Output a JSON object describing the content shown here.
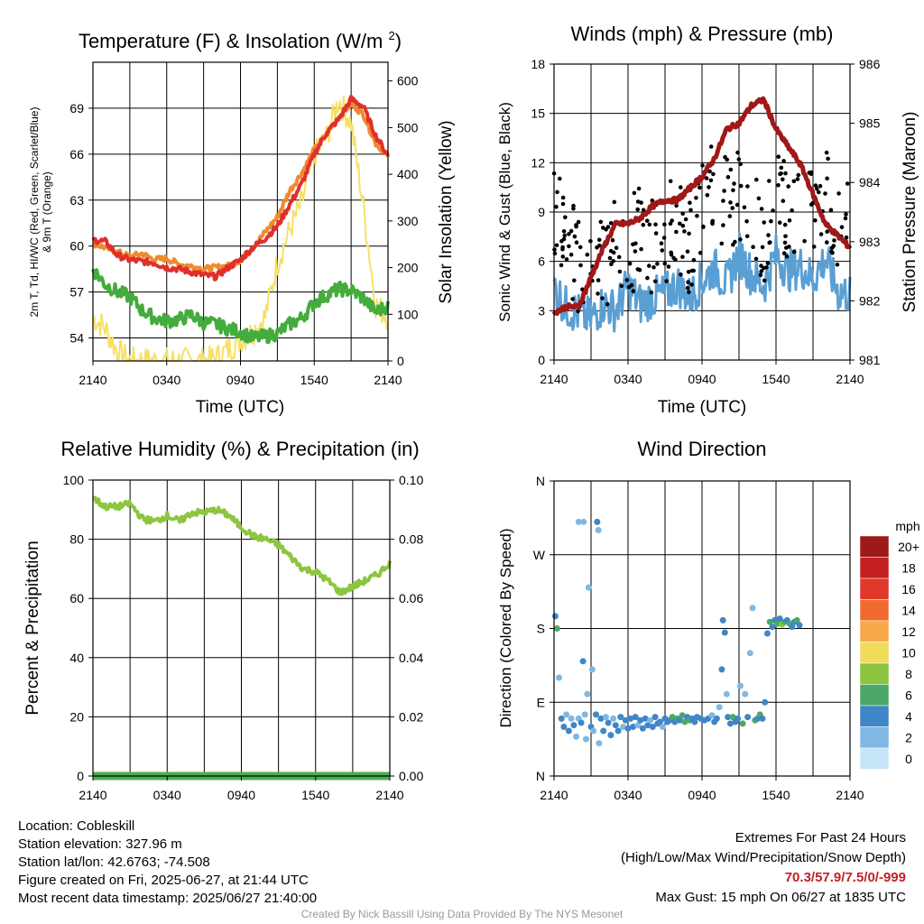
{
  "chart_data": [
    {
      "type": "line",
      "title": "Temperature (F) & Insolation (W/m²)",
      "xlabel": "Time (UTC)",
      "ylabel": "2m T, Td, HI/WC (Red, Green, Scarlet/Blue) & 9m T (Orange)",
      "ylabel_line1": "2m T, Td, HI/WC (Red, Green, Scarlet/Blue)",
      "ylabel_line2": "& 9m T (Orange)",
      "ylabel_right": "Solar Insolation (Yellow)",
      "x_ticks": [
        "2140",
        "0340",
        "0940",
        "1540",
        "2140"
      ],
      "ylim": [
        52.5,
        72
      ],
      "y_ticks": [
        54,
        57,
        60,
        63,
        66,
        69
      ],
      "ylim_right": [
        0,
        640
      ],
      "y_ticks_right": [
        0,
        100,
        200,
        300,
        400,
        500,
        600
      ],
      "x_hours": [
        0,
        1,
        2,
        3,
        4,
        5,
        6,
        7,
        8,
        9,
        10,
        11,
        12,
        13,
        14,
        15,
        16,
        17,
        18,
        19,
        20,
        21,
        22,
        23,
        24
      ],
      "series": [
        {
          "color": "#e0302a",
          "values": [
            60.4,
            60.3,
            59.4,
            59.1,
            59.0,
            58.9,
            58.6,
            58.5,
            58.3,
            58.1,
            58.0,
            58.6,
            59.1,
            59.9,
            60.5,
            61.3,
            62.7,
            64.1,
            66.0,
            67.4,
            68.3,
            69.6,
            69.1,
            67.2,
            65.9
          ]
        },
        {
          "color": "#f08a30",
          "values": [
            60.2,
            59.9,
            59.6,
            59.3,
            59.5,
            59.1,
            59.2,
            58.8,
            58.7,
            58.5,
            58.6,
            58.7,
            59.1,
            59.9,
            60.9,
            61.9,
            63.6,
            64.8,
            66.3,
            67.3,
            68.4,
            69.3,
            68.6,
            66.7,
            65.9
          ]
        },
        {
          "color": "#44ac3c",
          "values": [
            58.5,
            57.5,
            57.0,
            56.7,
            55.8,
            55.3,
            55.1,
            55.2,
            55.5,
            55.0,
            54.9,
            54.6,
            54.4,
            54.0,
            54.1,
            54.3,
            54.9,
            55.3,
            56.3,
            56.8,
            57.2,
            57.1,
            56.6,
            55.7,
            56.1
          ]
        },
        {
          "color": "#f7e065",
          "axis": "right",
          "values": [
            95,
            70,
            20,
            0,
            0,
            0,
            0,
            0,
            0,
            0,
            5,
            25,
            45,
            62,
            95,
            210,
            280,
            340,
            440,
            480,
            560,
            510,
            330,
            120,
            95
          ]
        }
      ]
    },
    {
      "type": "line",
      "title": "Winds (mph) & Pressure (mb)",
      "xlabel": "Time (UTC)",
      "ylabel": "Sonic Wind & Gust (Blue, Black)",
      "ylabel_right": "Station Pressure (Maroon)",
      "x_ticks": [
        "2140",
        "0340",
        "0940",
        "1540",
        "2140"
      ],
      "ylim": [
        0,
        18
      ],
      "y_ticks": [
        0,
        3,
        6,
        9,
        12,
        15,
        18
      ],
      "ylim_right": [
        981,
        986
      ],
      "y_ticks_right": [
        981,
        982,
        983,
        984,
        985,
        986
      ],
      "x_hours": [
        0,
        1,
        2,
        3,
        4,
        5,
        6,
        7,
        8,
        9,
        10,
        11,
        12,
        13,
        14,
        15,
        16,
        17,
        18,
        19,
        20,
        21,
        22,
        23,
        24
      ],
      "series": [
        {
          "color": "#a01818",
          "axis": "right",
          "values": [
            981.8,
            981.9,
            981.9,
            982.4,
            982.9,
            983.3,
            983.3,
            983.4,
            983.6,
            983.7,
            983.7,
            983.9,
            984.1,
            984.4,
            984.9,
            985.0,
            985.3,
            985.4,
            984.9,
            984.6,
            984.3,
            983.8,
            983.3,
            983.1,
            982.9
          ]
        },
        {
          "color": "#5a9fd4",
          "values": [
            4.5,
            3.2,
            2.8,
            2.5,
            3.4,
            3.0,
            4.5,
            3.4,
            3.8,
            4.0,
            4.6,
            3.8,
            4.8,
            5.6,
            4.6,
            6.5,
            5.2,
            4.5,
            6.4,
            5.4,
            5.7,
            4.9,
            6.2,
            4.2,
            4.0
          ]
        },
        {
          "color": "#000000",
          "mark": "gust-points",
          "values": [
            8.8,
            7.2,
            5.9,
            6.6,
            5.4,
            6.9,
            6.6,
            7.9,
            6.7,
            7.3,
            8.6,
            7.0,
            9.1,
            10.8,
            9.4,
            10.2,
            8.5,
            7.3,
            9.9,
            8.9,
            9.6,
            9.1,
            10.1,
            7.8,
            9.0
          ]
        }
      ]
    },
    {
      "type": "line",
      "title": "Relative Humidity (%) & Precipitation (in)",
      "ylabel": "Percent & Precipitation",
      "x_ticks": [
        "2140",
        "0340",
        "0940",
        "1540",
        "2140"
      ],
      "ylim": [
        0,
        100
      ],
      "y_ticks": [
        0,
        20,
        40,
        60,
        80,
        100
      ],
      "ylim_right": [
        0,
        0.1
      ],
      "y_ticks_right": [
        "0.00",
        "0.02",
        "0.04",
        "0.06",
        "0.08",
        "0.10"
      ],
      "x_hours": [
        0,
        1,
        2,
        3,
        4,
        5,
        6,
        7,
        8,
        9,
        10,
        11,
        12,
        13,
        14,
        15,
        16,
        17,
        18,
        19,
        20,
        21,
        22,
        23,
        24
      ],
      "series": [
        {
          "color": "#8cc63f",
          "values": [
            94,
            91,
            91,
            92,
            87,
            86,
            88,
            86,
            89,
            89,
            90,
            88,
            84,
            81,
            80,
            78,
            74,
            70,
            69,
            66,
            62,
            64,
            66,
            68,
            72
          ]
        },
        {
          "color": "#4bae4f",
          "axis": "right",
          "values": [
            0,
            0,
            0,
            0,
            0,
            0,
            0,
            0,
            0,
            0,
            0,
            0,
            0,
            0,
            0,
            0,
            0,
            0,
            0,
            0,
            0,
            0,
            0,
            0,
            0
          ]
        }
      ]
    },
    {
      "type": "scatter",
      "title": "Wind Direction",
      "ylabel": "Direction (Colored By Speed)",
      "x_ticks": [
        "2140",
        "0340",
        "0940",
        "1540",
        "2140"
      ],
      "y_ticks": [
        "N",
        "E",
        "S",
        "W",
        "N"
      ],
      "ylim": [
        0,
        360
      ],
      "colorbar": {
        "title": "mph",
        "labels": [
          "20+",
          "18",
          "16",
          "14",
          "12",
          "10",
          "8",
          "6",
          "4",
          "2",
          "0"
        ],
        "colors": [
          "#9e1a1a",
          "#c4201f",
          "#e0392b",
          "#f06a2d",
          "#f9a94a",
          "#f0dc5a",
          "#8cc43f",
          "#4ba86a",
          "#3f86c6",
          "#7fb8e3",
          "#c6e6f7"
        ]
      },
      "points": [
        {
          "x": 0.1,
          "y": 195,
          "speed": 4
        },
        {
          "x": 0.25,
          "y": 180,
          "speed": 6
        },
        {
          "x": 0.4,
          "y": 120,
          "speed": 2
        },
        {
          "x": 0.6,
          "y": 70,
          "speed": 4
        },
        {
          "x": 0.8,
          "y": 60,
          "speed": 4
        },
        {
          "x": 1.0,
          "y": 75,
          "speed": 2
        },
        {
          "x": 1.2,
          "y": 55,
          "speed": 4
        },
        {
          "x": 1.4,
          "y": 70,
          "speed": 2
        },
        {
          "x": 1.6,
          "y": 62,
          "speed": 4
        },
        {
          "x": 1.8,
          "y": 48,
          "speed": 2
        },
        {
          "x": 2.0,
          "y": 70,
          "speed": 2
        },
        {
          "x": 2.0,
          "y": 310,
          "speed": 2
        },
        {
          "x": 2.2,
          "y": 65,
          "speed": 4
        },
        {
          "x": 2.35,
          "y": 140,
          "speed": 4
        },
        {
          "x": 2.4,
          "y": 310,
          "speed": 2
        },
        {
          "x": 2.5,
          "y": 75,
          "speed": 2
        },
        {
          "x": 2.6,
          "y": 45,
          "speed": 2
        },
        {
          "x": 2.7,
          "y": 100,
          "speed": 2
        },
        {
          "x": 2.8,
          "y": 230,
          "speed": 2
        },
        {
          "x": 3.0,
          "y": 60,
          "speed": 4
        },
        {
          "x": 3.1,
          "y": 130,
          "speed": 2
        },
        {
          "x": 3.2,
          "y": 55,
          "speed": 2
        },
        {
          "x": 3.4,
          "y": 75,
          "speed": 4
        },
        {
          "x": 3.5,
          "y": 310,
          "speed": 4
        },
        {
          "x": 3.6,
          "y": 300,
          "speed": 2
        },
        {
          "x": 3.65,
          "y": 40,
          "speed": 2
        },
        {
          "x": 3.8,
          "y": 70,
          "speed": 4
        },
        {
          "x": 4.0,
          "y": 55,
          "speed": 4
        },
        {
          "x": 4.2,
          "y": 72,
          "speed": 2
        },
        {
          "x": 4.4,
          "y": 65,
          "speed": 4
        },
        {
          "x": 4.6,
          "y": 50,
          "speed": 4
        },
        {
          "x": 4.8,
          "y": 70,
          "speed": 2
        },
        {
          "x": 5.0,
          "y": 62,
          "speed": 4
        },
        {
          "x": 5.2,
          "y": 55,
          "speed": 4
        },
        {
          "x": 5.4,
          "y": 72,
          "speed": 4
        },
        {
          "x": 5.6,
          "y": 60,
          "speed": 2
        },
        {
          "x": 5.8,
          "y": 68,
          "speed": 4
        },
        {
          "x": 6.0,
          "y": 58,
          "speed": 4
        },
        {
          "x": 6.2,
          "y": 70,
          "speed": 4
        },
        {
          "x": 6.4,
          "y": 60,
          "speed": 4
        },
        {
          "x": 6.6,
          "y": 72,
          "speed": 4
        },
        {
          "x": 6.8,
          "y": 62,
          "speed": 2
        },
        {
          "x": 7.0,
          "y": 68,
          "speed": 4
        },
        {
          "x": 7.2,
          "y": 58,
          "speed": 4
        },
        {
          "x": 7.4,
          "y": 70,
          "speed": 4
        },
        {
          "x": 7.6,
          "y": 62,
          "speed": 4
        },
        {
          "x": 7.8,
          "y": 68,
          "speed": 2
        },
        {
          "x": 8.0,
          "y": 60,
          "speed": 4
        },
        {
          "x": 8.2,
          "y": 72,
          "speed": 4
        },
        {
          "x": 8.4,
          "y": 64,
          "speed": 4
        },
        {
          "x": 8.6,
          "y": 66,
          "speed": 4
        },
        {
          "x": 8.8,
          "y": 60,
          "speed": 2
        },
        {
          "x": 9.0,
          "y": 70,
          "speed": 4
        },
        {
          "x": 9.2,
          "y": 66,
          "speed": 4
        },
        {
          "x": 9.4,
          "y": 68,
          "speed": 4
        },
        {
          "x": 9.6,
          "y": 72,
          "speed": 6
        },
        {
          "x": 9.8,
          "y": 66,
          "speed": 4
        },
        {
          "x": 10.0,
          "y": 70,
          "speed": 6
        },
        {
          "x": 10.2,
          "y": 68,
          "speed": 4
        },
        {
          "x": 10.4,
          "y": 74,
          "speed": 6
        },
        {
          "x": 10.6,
          "y": 66,
          "speed": 6
        },
        {
          "x": 10.8,
          "y": 72,
          "speed": 4
        },
        {
          "x": 11.0,
          "y": 68,
          "speed": 6
        },
        {
          "x": 11.2,
          "y": 70,
          "speed": 4
        },
        {
          "x": 11.4,
          "y": 66,
          "speed": 4
        },
        {
          "x": 11.6,
          "y": 72,
          "speed": 4
        },
        {
          "x": 11.9,
          "y": 70,
          "speed": 4
        },
        {
          "x": 12.2,
          "y": 68,
          "speed": 4
        },
        {
          "x": 12.5,
          "y": 70,
          "speed": 4
        },
        {
          "x": 12.8,
          "y": 74,
          "speed": 2
        },
        {
          "x": 13.0,
          "y": 66,
          "speed": 4
        },
        {
          "x": 13.2,
          "y": 70,
          "speed": 4
        },
        {
          "x": 13.4,
          "y": 84,
          "speed": 2
        },
        {
          "x": 13.6,
          "y": 130,
          "speed": 4
        },
        {
          "x": 13.7,
          "y": 190,
          "speed": 4
        },
        {
          "x": 13.85,
          "y": 175,
          "speed": 4
        },
        {
          "x": 14.0,
          "y": 100,
          "speed": 2
        },
        {
          "x": 14.1,
          "y": 72,
          "speed": 4
        },
        {
          "x": 14.3,
          "y": 64,
          "speed": 4
        },
        {
          "x": 14.5,
          "y": 72,
          "speed": 6
        },
        {
          "x": 14.7,
          "y": 66,
          "speed": 4
        },
        {
          "x": 14.9,
          "y": 70,
          "speed": 4
        },
        {
          "x": 15.1,
          "y": 110,
          "speed": 2
        },
        {
          "x": 15.3,
          "y": 64,
          "speed": 6
        },
        {
          "x": 15.5,
          "y": 100,
          "speed": 2
        },
        {
          "x": 15.7,
          "y": 72,
          "speed": 4
        },
        {
          "x": 15.9,
          "y": 150,
          "speed": 2
        },
        {
          "x": 16.1,
          "y": 205,
          "speed": 2
        },
        {
          "x": 16.3,
          "y": 68,
          "speed": 6
        },
        {
          "x": 16.5,
          "y": 70,
          "speed": 4
        },
        {
          "x": 16.7,
          "y": 75,
          "speed": 6
        },
        {
          "x": 16.9,
          "y": 70,
          "speed": 4
        },
        {
          "x": 17.1,
          "y": 90,
          "speed": 4
        },
        {
          "x": 17.3,
          "y": 174,
          "speed": 4
        },
        {
          "x": 17.5,
          "y": 188,
          "speed": 6
        },
        {
          "x": 17.7,
          "y": 182,
          "speed": 4
        },
        {
          "x": 17.9,
          "y": 190,
          "speed": 4
        },
        {
          "x": 18.1,
          "y": 186,
          "speed": 6
        },
        {
          "x": 18.3,
          "y": 192,
          "speed": 4
        },
        {
          "x": 18.5,
          "y": 185,
          "speed": 8
        },
        {
          "x": 18.7,
          "y": 188,
          "speed": 6
        },
        {
          "x": 18.9,
          "y": 190,
          "speed": 4
        },
        {
          "x": 19.1,
          "y": 186,
          "speed": 6
        },
        {
          "x": 19.3,
          "y": 182,
          "speed": 4
        },
        {
          "x": 19.5,
          "y": 188,
          "speed": 4
        },
        {
          "x": 19.7,
          "y": 190,
          "speed": 6
        },
        {
          "x": 19.9,
          "y": 184,
          "speed": 4
        }
      ]
    }
  ],
  "footer": {
    "location": "Location: Cobleskill",
    "elevation": "Station elevation: 327.96 m",
    "latlon": "Station lat/lon: 42.6763; -74.508",
    "created": "Figure created on Fri, 2025-06-27, at 21:44 UTC",
    "recent": "Most recent data timestamp: 2025/06/27 21:40:00",
    "extremes_title": "Extremes For Past 24 Hours",
    "extremes_subtitle": "(High/Low/Max Wind/Precipitation/Snow Depth)",
    "extremes_values": "70.3/57.9/7.5/0/-999",
    "max_gust": "Max Gust: 15 mph On 06/27 at 1835 UTC",
    "credit": "Created By Nick Bassill Using Data Provided By The NYS Mesonet"
  }
}
